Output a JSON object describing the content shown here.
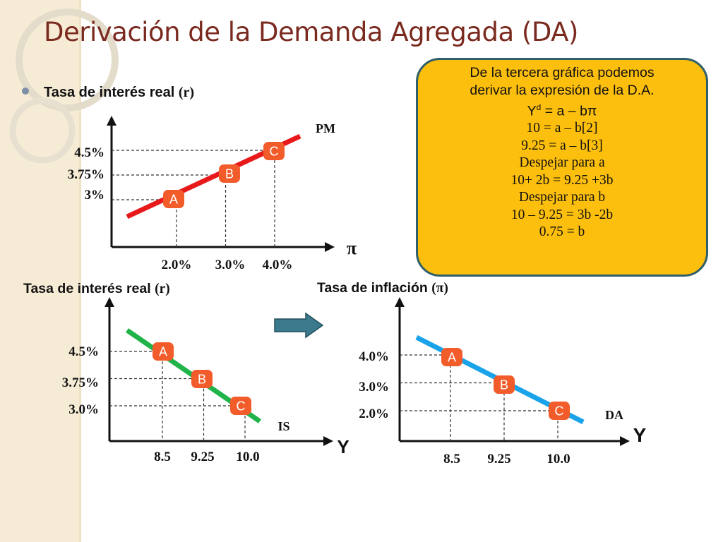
{
  "title": "Derivación de la Demanda Agregada (DA)",
  "bullet": {
    "text": "Tasa de interés real",
    "symbol": "(r)"
  },
  "bottom_left_label": {
    "text": "Tasa de interés real",
    "symbol": "(r)"
  },
  "bottom_right_label": {
    "text": "Tasa de inflación",
    "symbol": "(π)"
  },
  "bubble": {
    "bg_color": "#FDBF0D",
    "lines": [
      "De la tercera gráfica podemos",
      "derivar la expresión de la D.A.",
      "= a – bπ",
      "10 = a – b[2]",
      "9.25 = a – b[3]",
      "Despejar para a",
      "10+ 2b = 9.25 +3b",
      "Despejar para b",
      "10 – 9.25 = 3b -2b",
      "0.75 = b"
    ],
    "yd_base": "Y",
    "yd_sup": "d"
  },
  "colors": {
    "pm": "#E8191B",
    "is": "#1FB34A",
    "da": "#1AA3E8",
    "badge": "#F25C2B",
    "arrow": "#3A7A8C"
  },
  "chart_data": [
    {
      "type": "line",
      "series": [
        {
          "name": "PM",
          "x": [
            2.0,
            3.0,
            4.0
          ],
          "y": [
            3.0,
            3.75,
            4.5
          ],
          "labels": [
            "A",
            "B",
            "C"
          ]
        }
      ],
      "x_tick_labels": [
        "2.0%",
        "3.0%",
        "4.0%"
      ],
      "y_tick_labels": [
        "3%",
        "3.75%",
        "4.5%"
      ],
      "xlabel": "π",
      "ylabel": "",
      "grid": false
    },
    {
      "type": "line",
      "series": [
        {
          "name": "IS",
          "x": [
            8.5,
            9.25,
            10.0
          ],
          "y": [
            4.5,
            3.75,
            3.0
          ],
          "labels": [
            "A",
            "B",
            "C"
          ]
        }
      ],
      "x_tick_labels": [
        "8.5",
        "9.25",
        "10.0"
      ],
      "y_tick_labels": [
        "4.5%",
        "3.75%",
        "3.0%"
      ],
      "xlabel": "Y",
      "ylabel": "",
      "grid": false
    },
    {
      "type": "line",
      "series": [
        {
          "name": "DA",
          "x": [
            8.5,
            9.25,
            10.0
          ],
          "y": [
            4.0,
            3.0,
            2.0
          ],
          "labels": [
            "A",
            "B",
            "C"
          ]
        }
      ],
      "x_tick_labels": [
        "8.5",
        "9.25",
        "10.0"
      ],
      "y_tick_labels": [
        "4.0%",
        "3.0%",
        "2.0%"
      ],
      "xlabel": "Y",
      "ylabel": "",
      "grid": false
    }
  ]
}
